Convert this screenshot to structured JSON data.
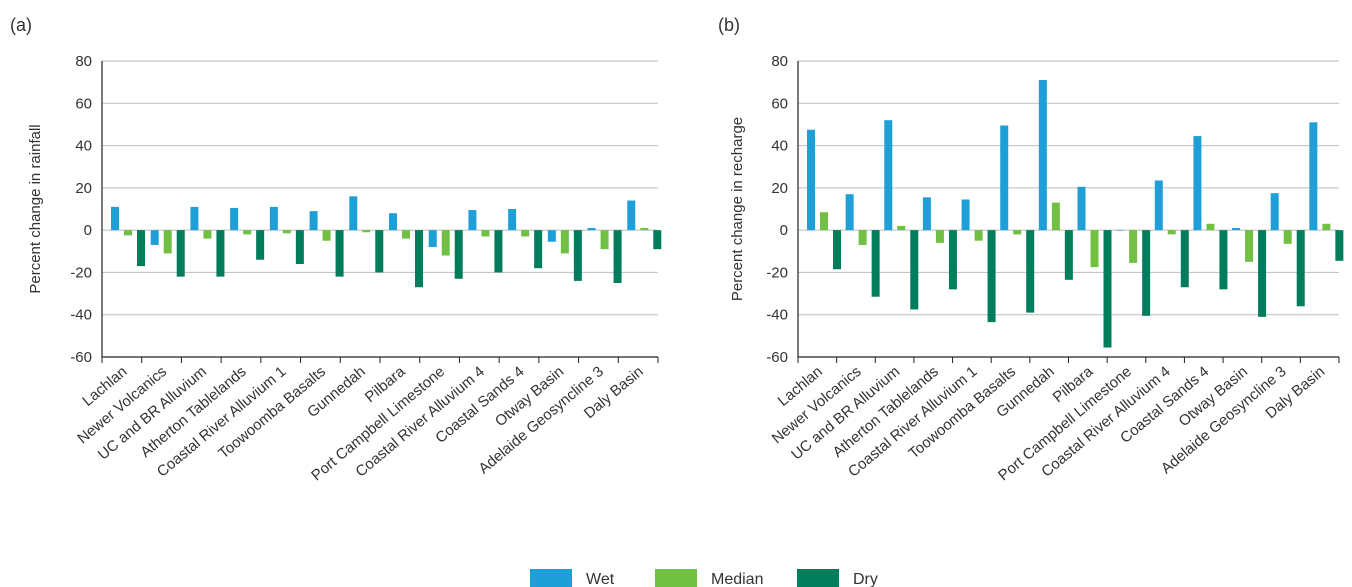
{
  "colors": {
    "wet": "#1f9fd8",
    "median": "#72c043",
    "dry": "#007d5b",
    "grid": "#bdbdbd"
  },
  "legend": [
    {
      "key": "wet",
      "label": "Wet"
    },
    {
      "key": "median",
      "label": "Median"
    },
    {
      "key": "dry",
      "label": "Dry"
    }
  ],
  "chart_data": [
    {
      "type": "bar",
      "panel": "(a)",
      "ylabel": "Percent change in rainfall",
      "ylim": [
        -60,
        80
      ],
      "yticks": [
        -60,
        -40,
        -20,
        0,
        20,
        40,
        60,
        80
      ],
      "grid": true,
      "legend_position": "bottom-center",
      "categories": [
        "Lachlan",
        "Newer Volcanics",
        "UC and BR Alluvium",
        "Atherton Tablelands",
        "Coastal River Alluvium 1",
        "Toowoomba Basalts",
        "Gunnedah",
        "Pilbara",
        "Port Campbell Limestone",
        "Coastal River Alluvium 4",
        "Coastal Sands 4",
        "Otway Basin",
        "Adelaide Geosyncline 3",
        "Daly Basin"
      ],
      "series": [
        {
          "name": "Wet",
          "values": [
            11,
            -7,
            11,
            10.5,
            11,
            9,
            16,
            8,
            -8,
            9.5,
            10,
            -5.5,
            1,
            14
          ]
        },
        {
          "name": "Median",
          "values": [
            -2.5,
            -11,
            -4,
            -2,
            -1.5,
            -5,
            -1,
            -4,
            -12,
            -3,
            -3,
            -11,
            -9,
            1
          ]
        },
        {
          "name": "Dry",
          "values": [
            -17,
            -22,
            -22,
            -14,
            -16,
            -22,
            -20,
            -27,
            -23,
            -20,
            -18,
            -24,
            -25,
            -9
          ]
        }
      ]
    },
    {
      "type": "bar",
      "panel": "(b)",
      "ylabel": "Percent change in recharge",
      "ylim": [
        -60,
        80
      ],
      "yticks": [
        -60,
        -40,
        -20,
        0,
        20,
        40,
        60,
        80
      ],
      "grid": true,
      "legend_position": "bottom-center",
      "categories": [
        "Lachlan",
        "Newer Volcanics",
        "UC and BR Alluvium",
        "Atherton Tablelands",
        "Coastal River Alluvium 1",
        "Toowoomba Basalts",
        "Gunnedah",
        "Pilbara",
        "Port Campbell Limestone",
        "Coastal River Alluvium 4",
        "Coastal Sands 4",
        "Otway Basin",
        "Adelaide Geosyncline 3",
        "Daly Basin"
      ],
      "series": [
        {
          "name": "Wet",
          "values": [
            47.5,
            17,
            52,
            15.5,
            14.5,
            49.5,
            71,
            20.5,
            0,
            23.5,
            44.5,
            1,
            17.5,
            51
          ]
        },
        {
          "name": "Median",
          "values": [
            8.5,
            -7,
            2,
            -6,
            -5,
            -2,
            13,
            -17.5,
            -15.5,
            -2,
            3,
            -15,
            -6.5,
            3
          ]
        },
        {
          "name": "Dry",
          "values": [
            -18.5,
            -31.5,
            -37.5,
            -28,
            -43.5,
            -39,
            -23.5,
            -55.5,
            -40.5,
            -27,
            -28,
            -41,
            -36,
            -14.5
          ]
        }
      ]
    }
  ]
}
